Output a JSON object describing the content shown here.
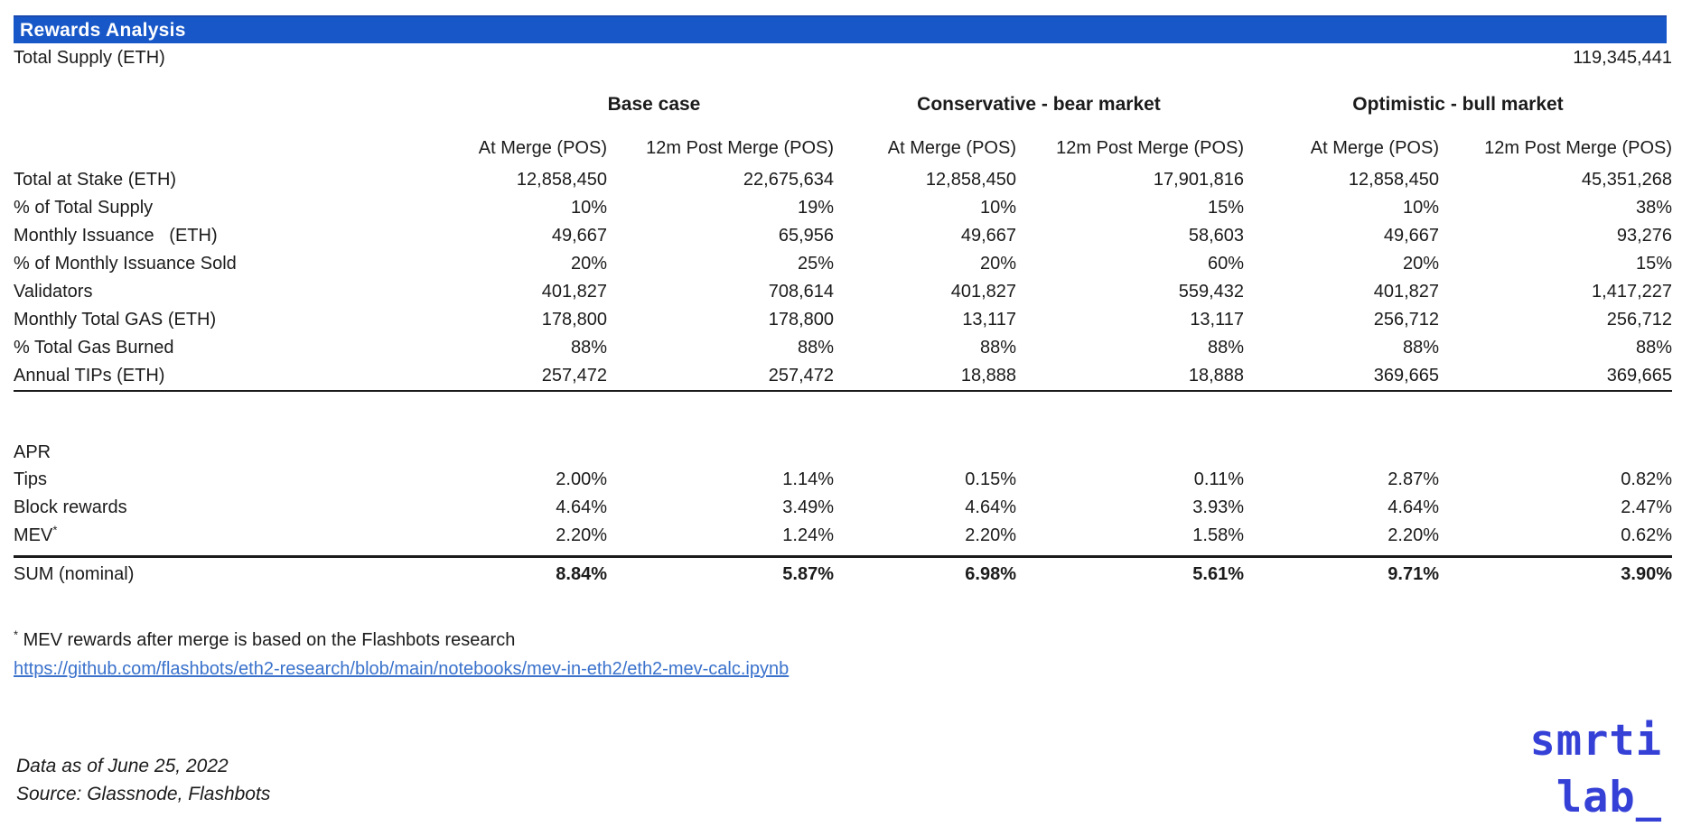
{
  "title": "Rewards Analysis",
  "colors": {
    "header_bg": "#1757C8",
    "link_blue": "#3A72CC",
    "logo_blue": "#3540D6"
  },
  "total_supply": {
    "label": "Total Supply (ETH)",
    "value": "119,345,441"
  },
  "chart_data": {
    "type": "table",
    "title": "Rewards Analysis",
    "total_supply_eth": "119,345,441",
    "column_groups": [
      {
        "label": "Base case"
      },
      {
        "label": "Conservative - bear market"
      },
      {
        "label": "Optimistic - bull market"
      }
    ],
    "subcolumns": [
      "At Merge (POS)",
      "12m Post Merge (POS)",
      "At Merge (POS)",
      "12m Post Merge (POS)",
      "At Merge (POS)",
      "12m Post Merge (POS)"
    ],
    "rows": [
      {
        "label": "Total at Stake (ETH)",
        "values": [
          "12,858,450",
          "22,675,634",
          "12,858,450",
          "17,901,816",
          "12,858,450",
          "45,351,268"
        ]
      },
      {
        "label": "% of Total Supply",
        "values": [
          "10%",
          "19%",
          "10%",
          "15%",
          "10%",
          "38%"
        ]
      },
      {
        "label": "Monthly Issuance   (ETH)",
        "values": [
          "49,667",
          "65,956",
          "49,667",
          "58,603",
          "49,667",
          "93,276"
        ]
      },
      {
        "label": "% of Monthly Issuance Sold",
        "values": [
          "20%",
          "25%",
          "20%",
          "60%",
          "20%",
          "15%"
        ]
      },
      {
        "label": "Validators",
        "values": [
          "401,827",
          "708,614",
          "401,827",
          "559,432",
          "401,827",
          "1,417,227"
        ]
      },
      {
        "label": "Monthly Total GAS (ETH)",
        "values": [
          "178,800",
          "178,800",
          "13,117",
          "13,117",
          "256,712",
          "256,712"
        ]
      },
      {
        "label": "% Total Gas Burned",
        "values": [
          "88%",
          "88%",
          "88%",
          "88%",
          "88%",
          "88%"
        ]
      },
      {
        "label": "Annual TIPs (ETH)",
        "values": [
          "257,472",
          "257,472",
          "18,888",
          "18,888",
          "369,665",
          "369,665"
        ]
      }
    ],
    "apr_section": {
      "label": "APR",
      "rows": [
        {
          "label": "Tips",
          "marker": "",
          "values": [
            "2.00%",
            "1.14%",
            "0.15%",
            "0.11%",
            "2.87%",
            "0.82%"
          ]
        },
        {
          "label": "Block rewards",
          "marker": "",
          "values": [
            "4.64%",
            "3.49%",
            "4.64%",
            "3.93%",
            "4.64%",
            "2.47%"
          ]
        },
        {
          "label": "MEV",
          "marker": "*",
          "values": [
            "2.20%",
            "1.24%",
            "2.20%",
            "1.58%",
            "2.20%",
            "0.62%"
          ]
        }
      ],
      "sum": {
        "label": "SUM (nominal)",
        "values": [
          "8.84%",
          "5.87%",
          "6.98%",
          "5.61%",
          "9.71%",
          "3.90%"
        ]
      }
    }
  },
  "footnote": {
    "marker": "*",
    "text": " MEV rewards after merge is based on the Flashbots research",
    "link": "https://github.com/flashbots/eth2-research/blob/main/notebooks/mev-in-eth2/eth2-mev-calc.ipynb"
  },
  "footer": {
    "data_as_of": "Data as of June 25, 2022",
    "source": "Source: Glassnode, Flashbots"
  },
  "logo": {
    "line1": "smrti",
    "line2": "lab_"
  }
}
